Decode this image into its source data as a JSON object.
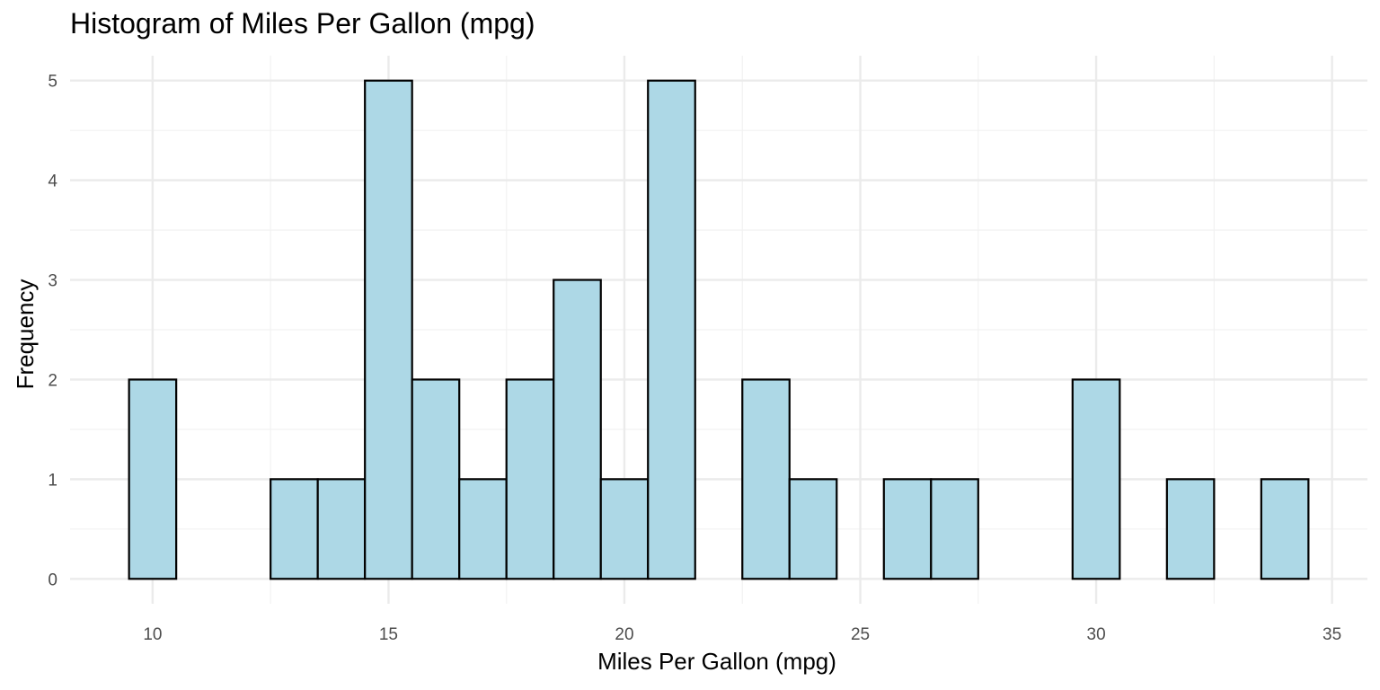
{
  "chart_data": {
    "type": "bar",
    "title": "Histogram of Miles Per Gallon (mpg)",
    "xlabel": "Miles Per Gallon (mpg)",
    "ylabel": "Frequency",
    "bin_width": 1,
    "bin_centers": [
      10,
      11,
      12,
      13,
      14,
      15,
      16,
      17,
      18,
      19,
      20,
      21,
      22,
      23,
      24,
      25,
      26,
      27,
      28,
      29,
      30,
      31,
      32,
      33,
      34
    ],
    "values": [
      2,
      0,
      0,
      1,
      1,
      5,
      2,
      1,
      2,
      3,
      1,
      5,
      0,
      2,
      1,
      0,
      1,
      1,
      0,
      0,
      2,
      0,
      1,
      0,
      1
    ],
    "xlim": [
      8.25,
      35.75
    ],
    "ylim": [
      -0.25,
      5.25
    ],
    "x_ticks": [
      10,
      15,
      20,
      25,
      30,
      35
    ],
    "y_ticks": [
      0,
      1,
      2,
      3,
      4,
      5
    ],
    "grid": true,
    "bar_fill": "#add8e6",
    "bar_stroke": "#000000",
    "grid_major_color": "#ebebeb",
    "grid_minor_color": "#f2f2f2"
  }
}
